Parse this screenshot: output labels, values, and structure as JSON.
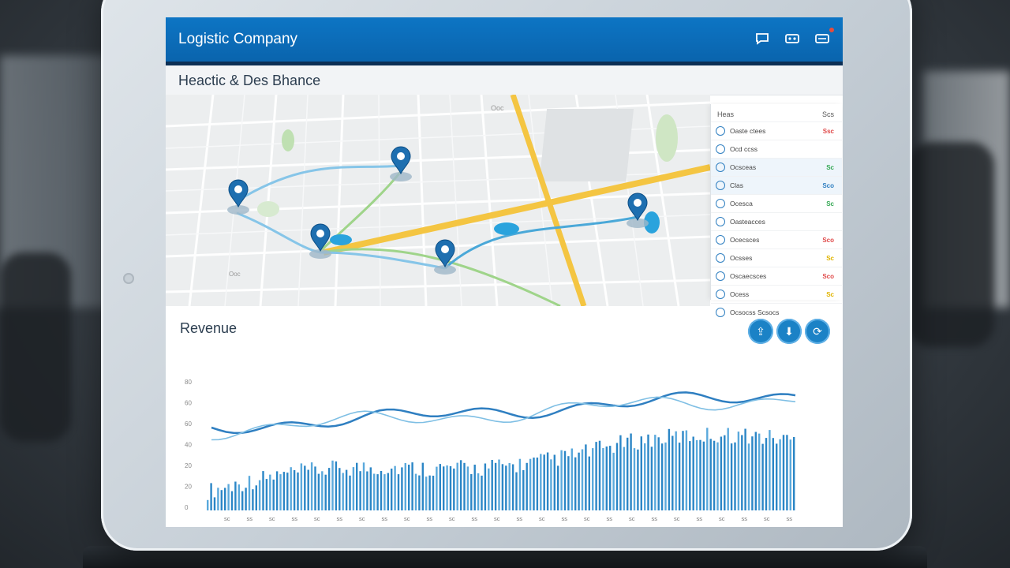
{
  "header": {
    "title": "Logistic Company",
    "icons": [
      "chat-icon",
      "map-icon",
      "notification-icon"
    ]
  },
  "section": {
    "title": "Heactic & Des Bhance"
  },
  "map": {
    "labels": [
      "Ooc",
      "Ooc"
    ],
    "pins": 5
  },
  "panel": {
    "header_left": "Heas",
    "header_right": "Scs",
    "rows": [
      {
        "label": "Oaste ctees",
        "status": "Ssc",
        "color": "#e04b4b"
      },
      {
        "label": "Ocd ccss",
        "status": "",
        "color": ""
      },
      {
        "label": "Ocsceas",
        "status": "Sc",
        "color": "#34a853"
      },
      {
        "label": "Clas",
        "status": "Sco",
        "color": "#2f7fc1"
      },
      {
        "label": "Ocesca",
        "status": "Sc",
        "color": "#34a853"
      },
      {
        "label": "Oasteacces",
        "status": "",
        "color": ""
      },
      {
        "label": "Ocecsces",
        "status": "Sco",
        "color": "#e04b4b"
      },
      {
        "label": "Ocsses",
        "status": "Sc",
        "color": "#e0b400"
      },
      {
        "label": "Oscaecsces",
        "status": "Sco",
        "color": "#e04b4b"
      },
      {
        "label": "Ocess",
        "status": "Sc",
        "color": "#e0b400"
      },
      {
        "label": "Ocsocss  Scsocs",
        "status": "",
        "color": "#2f7fc1"
      }
    ]
  },
  "revenue": {
    "title": "Revenue",
    "y_ticks": [
      "80",
      "60",
      "60",
      "40",
      "20",
      "20",
      "0"
    ],
    "actions": [
      "share-icon",
      "download-icon",
      "refresh-icon"
    ]
  },
  "colors": {
    "header_blue": "#0a6bb7",
    "accent_blue": "#1b82c6",
    "road_yellow": "#f4c542",
    "route_blue": "#4aa8d8",
    "route_green": "#8ecf6a"
  }
}
